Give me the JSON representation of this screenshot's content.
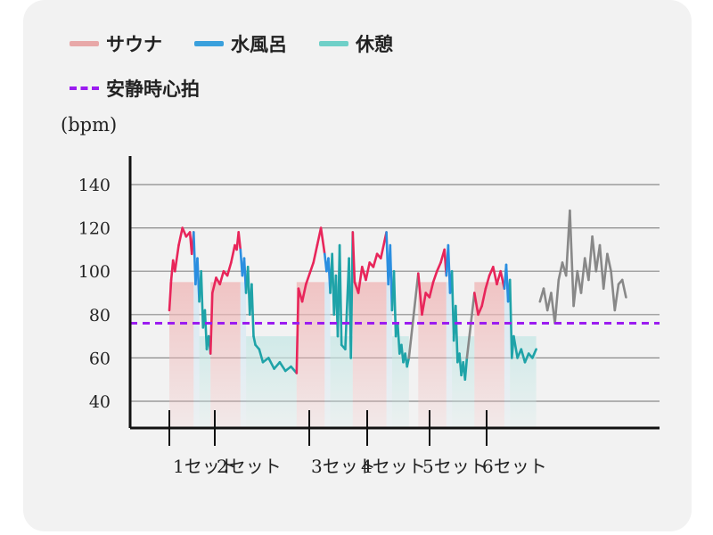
{
  "legend": {
    "sauna": "サウナ",
    "water_bath": "水風呂",
    "rest": "休憩",
    "resting_hr": "安静時心拍"
  },
  "colors": {
    "sauna_legend": "#e8a8a8",
    "water_legend": "#3aa0dc",
    "rest_legend": "#6fd0c8",
    "sauna_line": "#e8255a",
    "water_line": "#2a8ee0",
    "rest_line": "#1fa3a8",
    "other_line": "#888888",
    "resting_line": "#9b1cf0",
    "sauna_fill": "#f0b8b8",
    "rest_fill": "#c8e8e6"
  },
  "chart_data": {
    "type": "line",
    "ylabel": "(bpm)",
    "ylim": [
      28,
      148
    ],
    "yticks": [
      40,
      60,
      80,
      100,
      120,
      140
    ],
    "resting_hr": 76,
    "grid": true,
    "legend_placement": "top-left",
    "set_labels": [
      "1セット",
      "2セット",
      "3セット",
      "4セット",
      "5セット",
      "6セット"
    ],
    "x_range": [
      0,
      240
    ],
    "phases": [
      {
        "type": "sauna",
        "x0": 0,
        "x1": 13
      },
      {
        "type": "water",
        "x0": 13,
        "x1": 16
      },
      {
        "type": "rest",
        "x0": 16,
        "x1": 22
      },
      {
        "type": "sauna",
        "x0": 22,
        "x1": 38
      },
      {
        "type": "water",
        "x0": 38,
        "x1": 41
      },
      {
        "type": "rest",
        "x0": 41,
        "x1": 68
      },
      {
        "type": "sauna",
        "x0": 68,
        "x1": 83
      },
      {
        "type": "water",
        "x0": 83,
        "x1": 86
      },
      {
        "type": "rest",
        "x0": 86,
        "x1": 98
      },
      {
        "type": "sauna",
        "x0": 98,
        "x1": 116
      },
      {
        "type": "water",
        "x0": 116,
        "x1": 119
      },
      {
        "type": "rest",
        "x0": 119,
        "x1": 128
      },
      {
        "type": "sauna",
        "x0": 133,
        "x1": 148
      },
      {
        "type": "water",
        "x0": 148,
        "x1": 151
      },
      {
        "type": "rest",
        "x0": 151,
        "x1": 163
      },
      {
        "type": "sauna",
        "x0": 163,
        "x1": 179
      },
      {
        "type": "water",
        "x0": 179,
        "x1": 182
      },
      {
        "type": "rest",
        "x0": 182,
        "x1": 196
      }
    ],
    "series": [
      {
        "values": [
          [
            0,
            82
          ],
          [
            1,
            96
          ],
          [
            2,
            105
          ],
          [
            3,
            100
          ],
          [
            5,
            112
          ],
          [
            7,
            120
          ],
          [
            9,
            116
          ],
          [
            11,
            118
          ],
          [
            12,
            108
          ],
          [
            13,
            118
          ],
          [
            14,
            94
          ],
          [
            15,
            106
          ],
          [
            16,
            86
          ],
          [
            17,
            100
          ],
          [
            18,
            74
          ],
          [
            19,
            82
          ],
          [
            20,
            64
          ],
          [
            21,
            70
          ],
          [
            22,
            62
          ],
          [
            23,
            90
          ],
          [
            25,
            97
          ],
          [
            27,
            94
          ],
          [
            29,
            100
          ],
          [
            31,
            98
          ],
          [
            33,
            104
          ],
          [
            35,
            112
          ],
          [
            36,
            110
          ],
          [
            37,
            118
          ],
          [
            38,
            110
          ],
          [
            39,
            98
          ],
          [
            40,
            106
          ],
          [
            41,
            90
          ],
          [
            42,
            102
          ],
          [
            43,
            80
          ],
          [
            44,
            94
          ],
          [
            45,
            70
          ],
          [
            46,
            66
          ],
          [
            48,
            64
          ],
          [
            50,
            58
          ],
          [
            53,
            60
          ],
          [
            56,
            55
          ],
          [
            59,
            58
          ],
          [
            62,
            54
          ],
          [
            65,
            56
          ],
          [
            68,
            53
          ],
          [
            69,
            92
          ],
          [
            71,
            86
          ],
          [
            73,
            94
          ],
          [
            75,
            99
          ],
          [
            77,
            104
          ],
          [
            79,
            112
          ],
          [
            81,
            120
          ],
          [
            82,
            114
          ],
          [
            83,
            108
          ],
          [
            84,
            100
          ],
          [
            85,
            106
          ],
          [
            86,
            90
          ],
          [
            87,
            108
          ],
          [
            88,
            80
          ],
          [
            89,
            98
          ],
          [
            90,
            70
          ],
          [
            91,
            112
          ],
          [
            92,
            66
          ],
          [
            94,
            64
          ],
          [
            96,
            106
          ],
          [
            97,
            60
          ],
          [
            98,
            118
          ],
          [
            99,
            95
          ],
          [
            101,
            90
          ],
          [
            103,
            102
          ],
          [
            105,
            96
          ],
          [
            107,
            104
          ],
          [
            109,
            102
          ],
          [
            111,
            108
          ],
          [
            113,
            106
          ],
          [
            115,
            114
          ],
          [
            116,
            118
          ],
          [
            117,
            94
          ],
          [
            118,
            112
          ],
          [
            119,
            82
          ],
          [
            120,
            100
          ],
          [
            121,
            70
          ],
          [
            122,
            76
          ],
          [
            123,
            62
          ],
          [
            124,
            66
          ],
          [
            125,
            58
          ],
          [
            126,
            62
          ],
          [
            127,
            56
          ],
          [
            128,
            60
          ],
          [
            133,
            99
          ],
          [
            135,
            80
          ],
          [
            137,
            90
          ],
          [
            139,
            88
          ],
          [
            141,
            95
          ],
          [
            143,
            100
          ],
          [
            145,
            104
          ],
          [
            147,
            110
          ],
          [
            148,
            98
          ],
          [
            149,
            112
          ],
          [
            150,
            90
          ],
          [
            151,
            100
          ],
          [
            152,
            68
          ],
          [
            153,
            84
          ],
          [
            154,
            58
          ],
          [
            155,
            62
          ],
          [
            156,
            52
          ],
          [
            157,
            58
          ],
          [
            158,
            50
          ],
          [
            159,
            60
          ],
          [
            163,
            90
          ],
          [
            165,
            80
          ],
          [
            167,
            84
          ],
          [
            169,
            92
          ],
          [
            171,
            98
          ],
          [
            173,
            102
          ],
          [
            175,
            94
          ],
          [
            177,
            100
          ],
          [
            179,
            92
          ],
          [
            180,
            103
          ],
          [
            181,
            86
          ],
          [
            182,
            96
          ],
          [
            183,
            60
          ],
          [
            184,
            70
          ],
          [
            186,
            60
          ],
          [
            188,
            64
          ],
          [
            190,
            58
          ],
          [
            192,
            62
          ],
          [
            194,
            60
          ],
          [
            196,
            64
          ]
        ]
      },
      {
        "values": [
          [
            198,
            86
          ],
          [
            200,
            92
          ],
          [
            202,
            82
          ],
          [
            204,
            90
          ],
          [
            206,
            76
          ],
          [
            208,
            96
          ],
          [
            210,
            104
          ],
          [
            212,
            98
          ],
          [
            214,
            128
          ],
          [
            216,
            84
          ],
          [
            218,
            100
          ],
          [
            220,
            90
          ],
          [
            222,
            106
          ],
          [
            224,
            96
          ],
          [
            226,
            116
          ],
          [
            228,
            100
          ],
          [
            230,
            112
          ],
          [
            232,
            92
          ],
          [
            234,
            108
          ],
          [
            236,
            100
          ],
          [
            238,
            82
          ],
          [
            240,
            94
          ],
          [
            242,
            96
          ],
          [
            244,
            88
          ]
        ]
      }
    ]
  }
}
